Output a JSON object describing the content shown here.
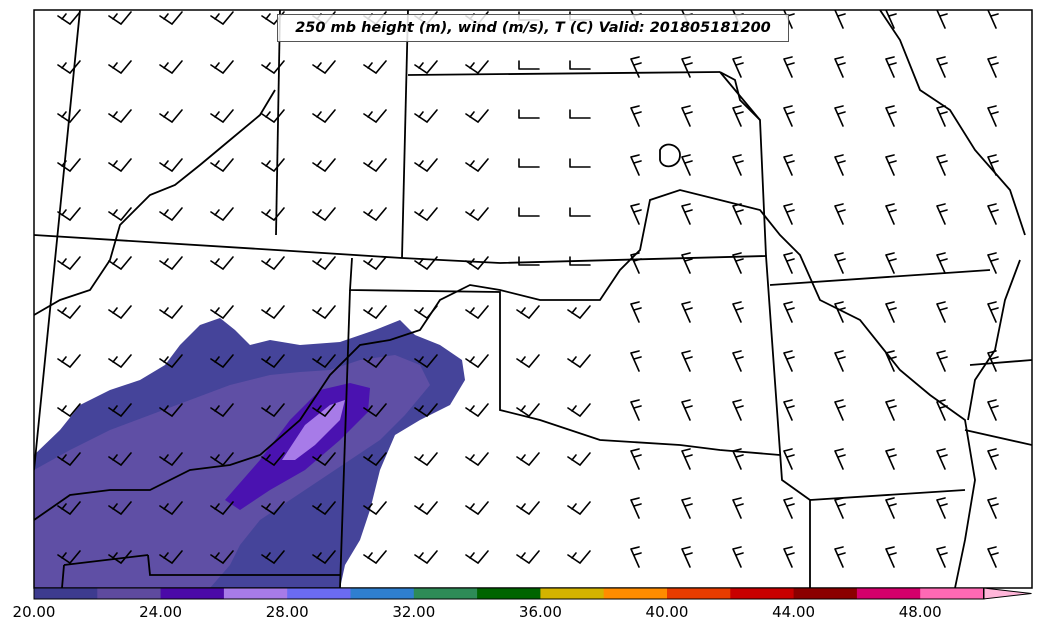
{
  "title": "250 mb height (m), wind (m/s), T (C) Valid: 201805181200",
  "colorbar": {
    "colors": [
      "#3d3b8f",
      "#5e4a9e",
      "#4b0aa8",
      "#a77be8",
      "#6b6bf2",
      "#2f7fcf",
      "#2e8b57",
      "#006400",
      "#d4b300",
      "#ff8c00",
      "#e83c00",
      "#c80000",
      "#8b0000",
      "#d4006b",
      "#ff69b4"
    ],
    "extend_color": "#ffb6d9",
    "tick_labels": [
      "20.00",
      "24.00",
      "28.00",
      "32.00",
      "36.00",
      "40.00",
      "44.00",
      "48.00"
    ]
  },
  "shading_colors": {
    "outer": "#45449a",
    "mid": "#5f4fa5",
    "core": "#4a12b0",
    "center": "#a77be8"
  }
}
